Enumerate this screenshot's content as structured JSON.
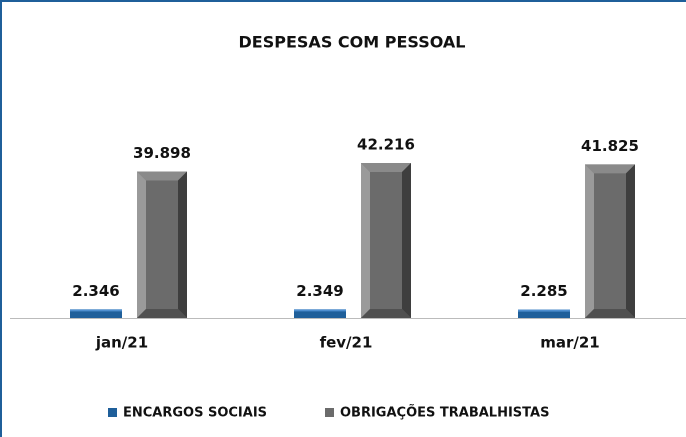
{
  "chart_data": {
    "type": "bar",
    "title": "DESPESAS COM PESSOAL",
    "categories": [
      "jan/21",
      "fev/21",
      "mar/21"
    ],
    "series": [
      {
        "name": "ENCARGOS SOCIAIS",
        "color": "#1f5f9a",
        "values": [
          2346,
          2349,
          2285
        ],
        "value_labels": [
          "2.346",
          "2.349",
          "2.285"
        ]
      },
      {
        "name": "OBRIGAÇÕES TRABALHISTAS",
        "color": "#6b6b6b",
        "values": [
          39898,
          42216,
          41825
        ],
        "value_labels": [
          "39.898",
          "42.216",
          "41.825"
        ]
      }
    ],
    "legend": "bottom"
  }
}
